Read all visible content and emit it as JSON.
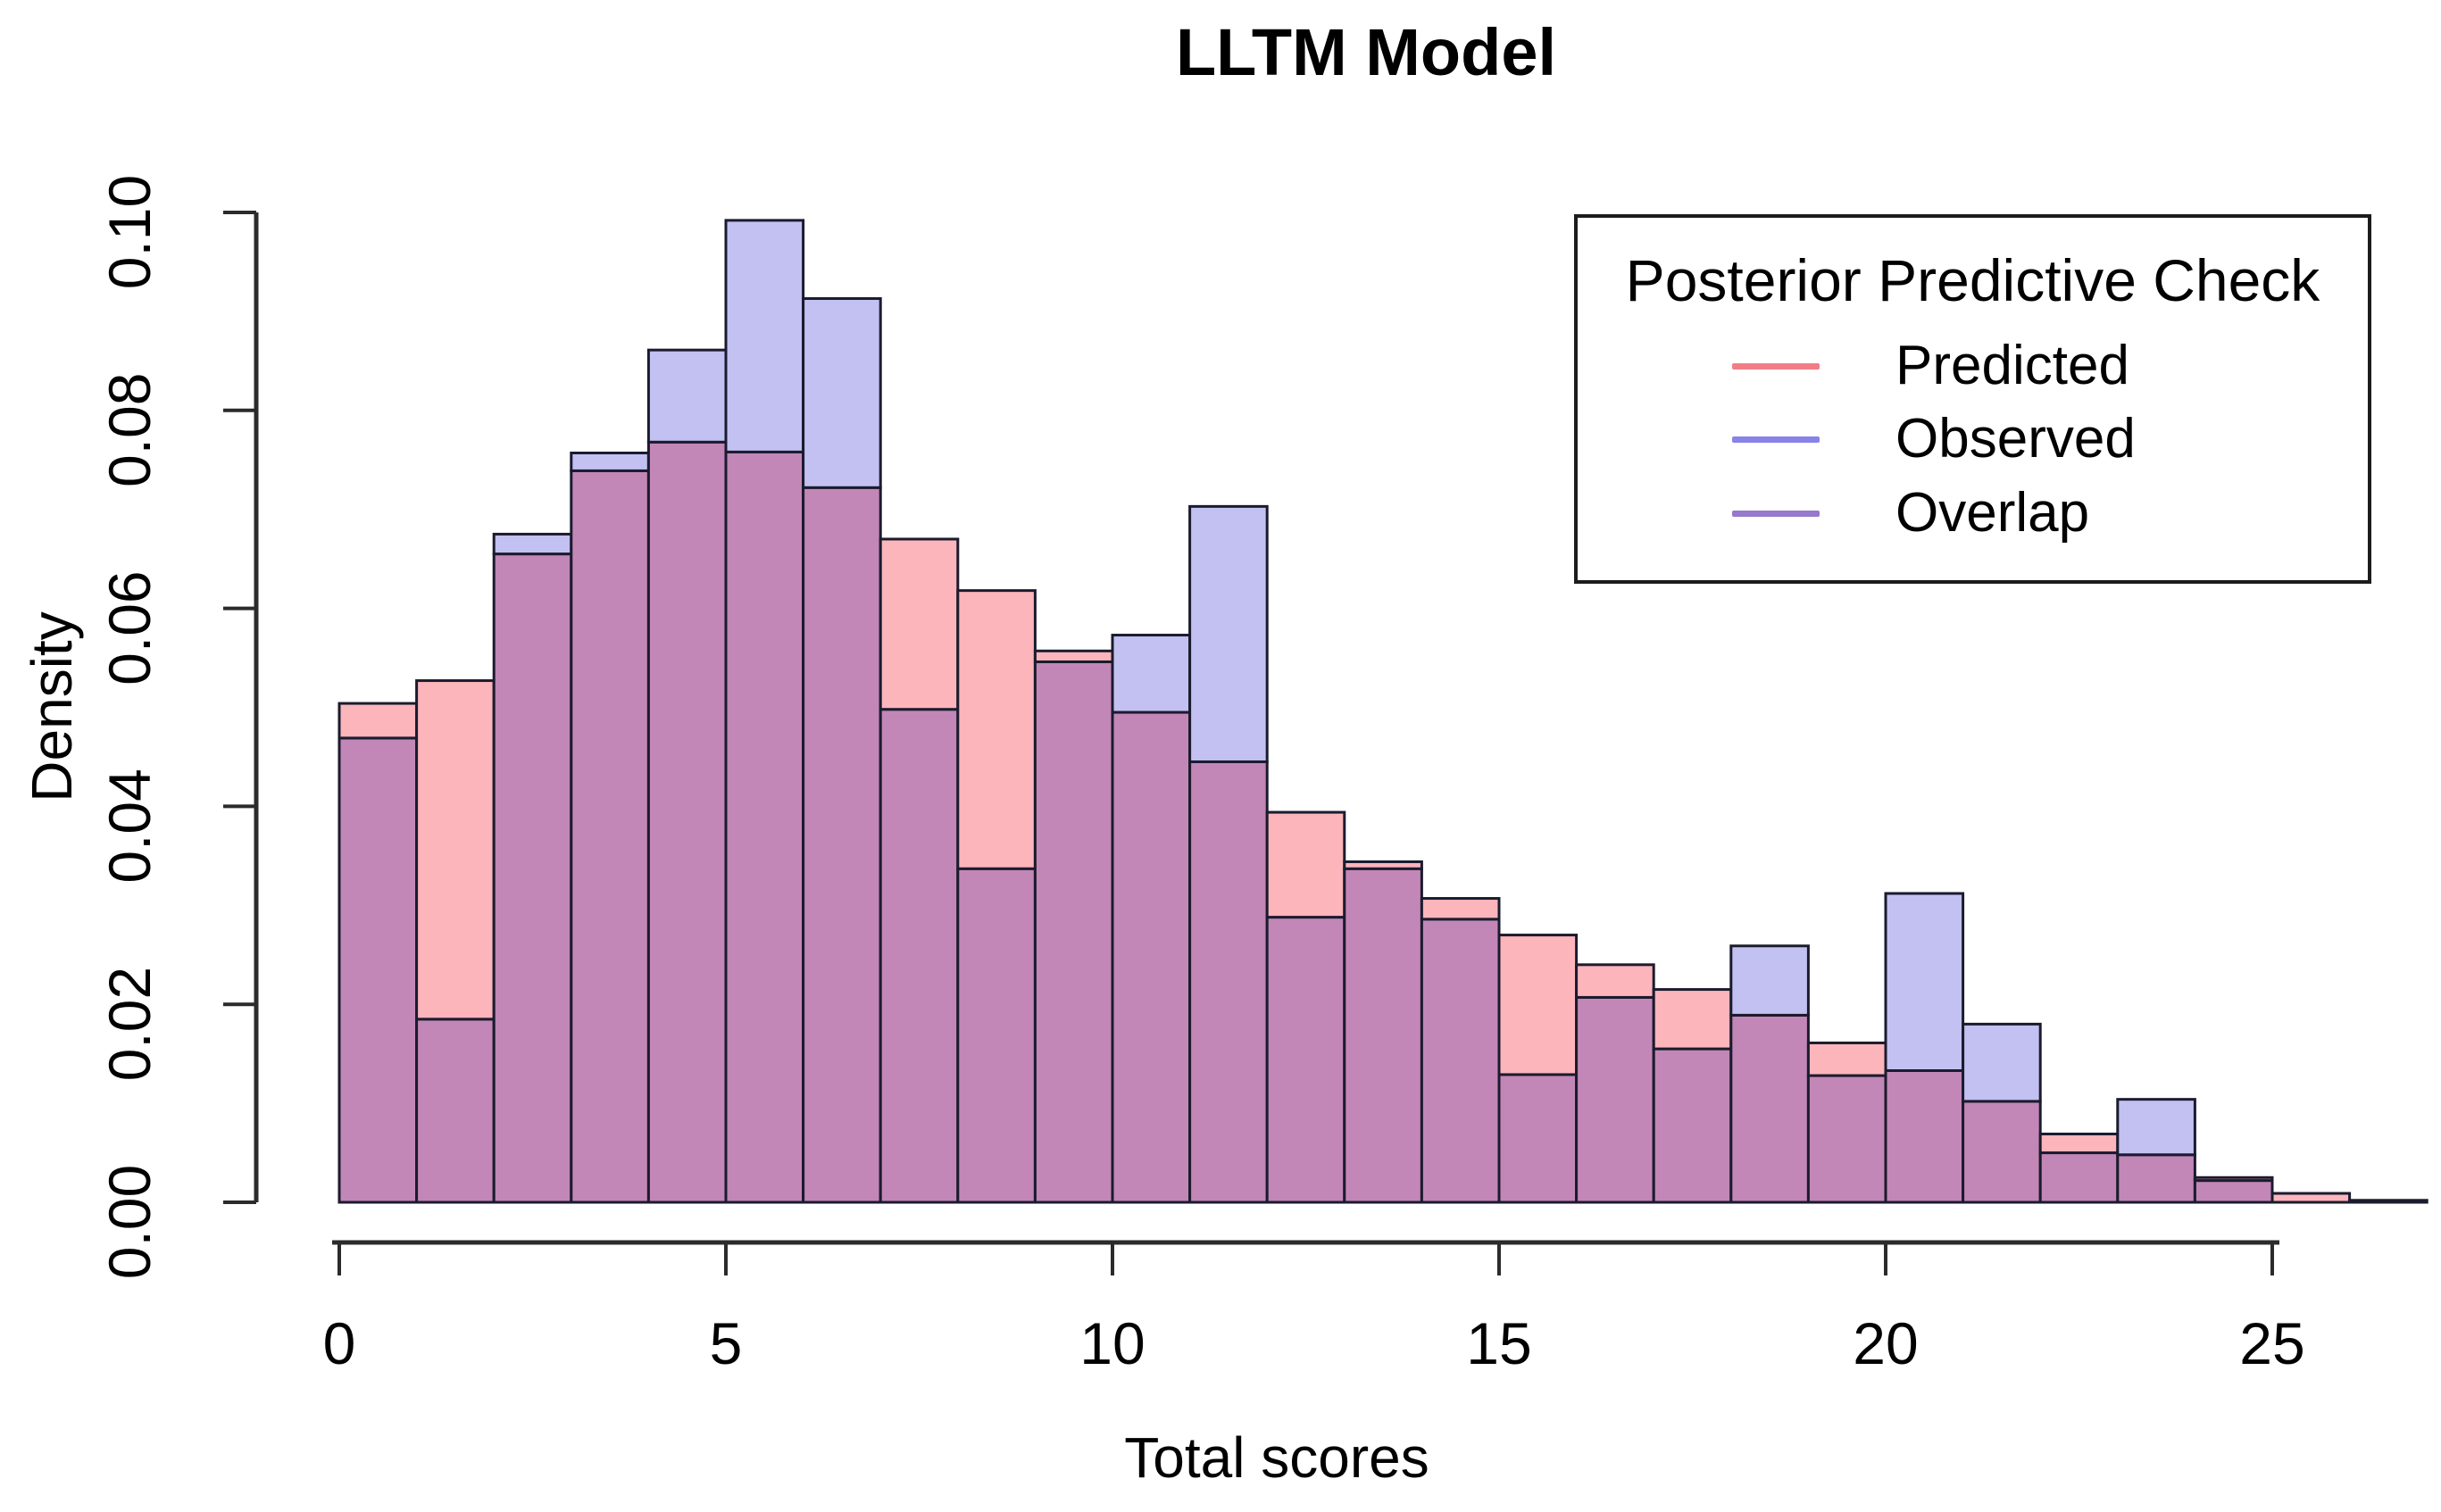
{
  "title": "LLTM Model",
  "legend": {
    "title": "Posterior Predictive Check",
    "entries": [
      {
        "label": "Predicted",
        "color": "#F27D87"
      },
      {
        "label": "Observed",
        "color": "#8783E8"
      },
      {
        "label": "Overlap",
        "color": "#9678CD"
      }
    ]
  },
  "chart_data": {
    "type": "histogram-overlay",
    "title": "LLTM Model",
    "xlabel": "Total scores",
    "ylabel": "Density",
    "bin_start": 0,
    "bin_width": 1,
    "x_ticks": [
      0,
      5,
      10,
      15,
      20,
      25
    ],
    "y_ticks": [
      0,
      0.02,
      0.04,
      0.06,
      0.08,
      0.1
    ],
    "y_tick_labels": [
      "0.00",
      "0.02",
      "0.04",
      "0.06",
      "0.08",
      "0.10"
    ],
    "x_tick_labels": [
      "0",
      "5",
      "10",
      "15",
      "20",
      "25"
    ],
    "xlim": [
      0,
      27
    ],
    "ylim": [
      0,
      0.1
    ],
    "grid": false,
    "legend_position": "top-right",
    "series": [
      {
        "name": "Predicted",
        "fill_only_color": "#FBB5BB",
        "values": [
          0.0504,
          0.0527,
          0.0655,
          0.0739,
          0.0768,
          0.0758,
          0.0722,
          0.067,
          0.0618,
          0.0557,
          0.0495,
          0.0445,
          0.0394,
          0.0344,
          0.0307,
          0.027,
          0.024,
          0.0215,
          0.0189,
          0.0161,
          0.0133,
          0.0102,
          0.0069,
          0.0048,
          0.0025,
          0.0009,
          0.0002
        ]
      },
      {
        "name": "Observed",
        "fill_only_color": "#C2C1F2",
        "values": [
          0.0469,
          0.0185,
          0.0675,
          0.0757,
          0.0861,
          0.0992,
          0.0913,
          0.0498,
          0.0337,
          0.0546,
          0.0573,
          0.0703,
          0.0288,
          0.0337,
          0.0286,
          0.0129,
          0.0207,
          0.0155,
          0.0259,
          0.0128,
          0.0312,
          0.018,
          0.005,
          0.0104,
          0.0022,
          0.0,
          0.0
        ]
      }
    ],
    "overlap_color": "#C287B7",
    "bar_border_color": "#1B1B2E",
    "axis_color": "#2B2B2B"
  }
}
